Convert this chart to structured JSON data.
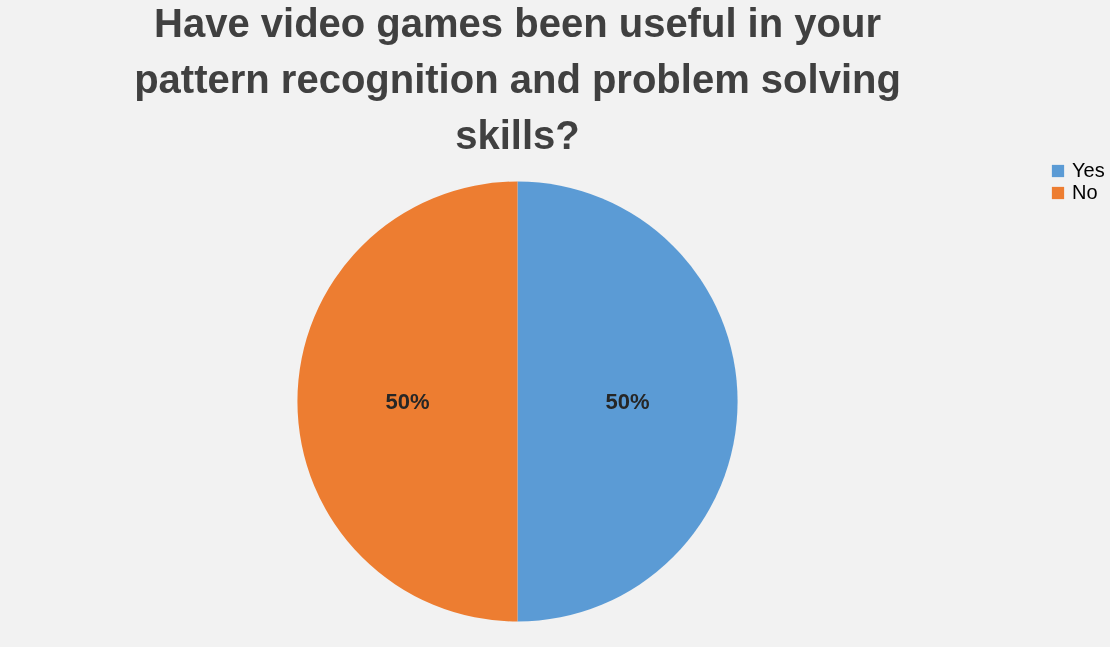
{
  "chart_data": {
    "type": "pie",
    "title": "Have video games been useful in your pattern recognition and problem solving skills?",
    "categories": [
      "Yes",
      "No"
    ],
    "values": [
      50,
      50
    ],
    "colors": [
      "#5b9bd5",
      "#ed7d31"
    ],
    "value_labels": [
      "50%",
      "50%"
    ],
    "legend": "right"
  }
}
